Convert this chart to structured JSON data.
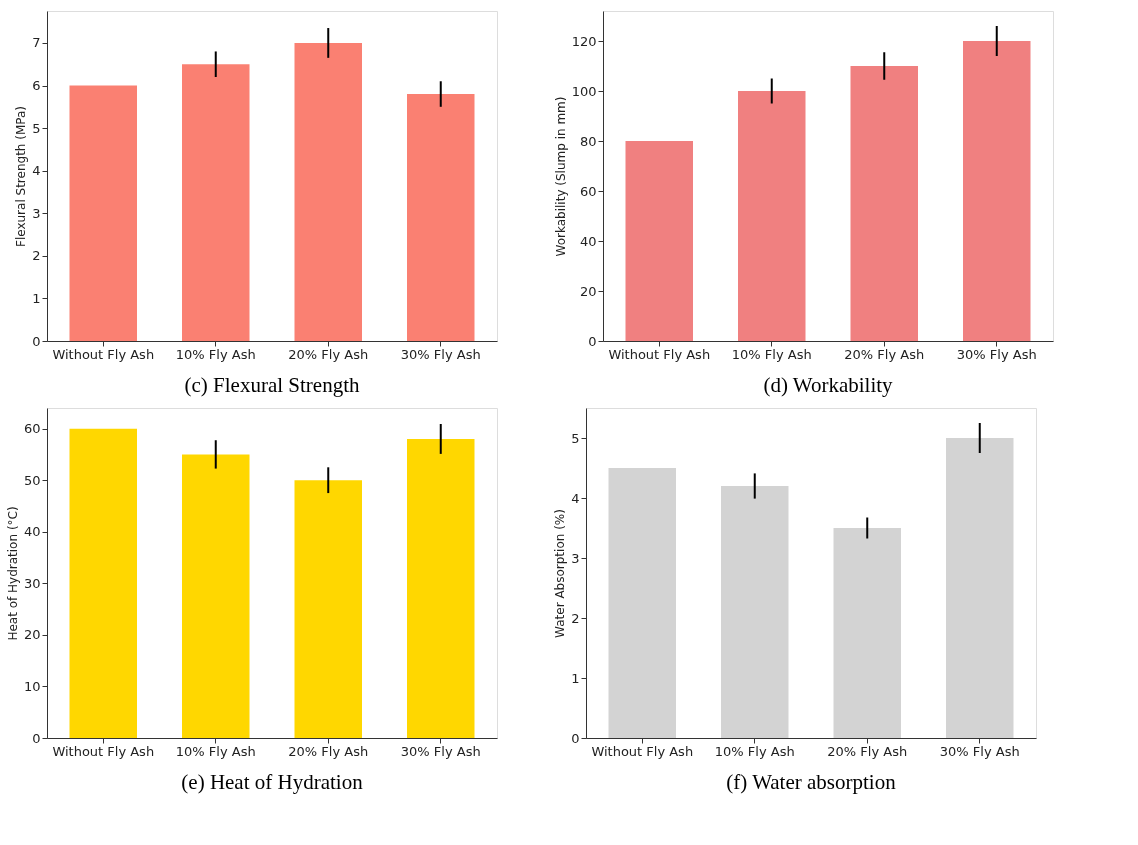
{
  "chart_data": [
    {
      "type": "bar",
      "title": "(c)   Flexural Strength",
      "ylabel": "Flexural Strength (MPa)",
      "categories": [
        "Without Fly Ash",
        "10% Fly Ash",
        "20% Fly Ash",
        "30% Fly Ash"
      ],
      "values": [
        6,
        6.5,
        7,
        5.8
      ],
      "errors": [
        null,
        0.3,
        0.35,
        0.3
      ],
      "color": "#fa8072",
      "ylim": [
        0,
        7.75
      ],
      "yticks": [
        0,
        1,
        2,
        3,
        4,
        5,
        6,
        7
      ],
      "grid": false
    },
    {
      "type": "bar",
      "title": "(d)   Workability",
      "ylabel": "Workability (Slump in mm)",
      "categories": [
        "Without Fly Ash",
        "10% Fly Ash",
        "20% Fly Ash",
        "30% Fly Ash"
      ],
      "values": [
        80,
        100,
        110,
        120
      ],
      "errors": [
        null,
        5,
        5.5,
        6
      ],
      "color": "#f08080",
      "ylim": [
        0,
        132
      ],
      "yticks": [
        0,
        20,
        40,
        60,
        80,
        100,
        120
      ],
      "grid": false
    },
    {
      "type": "bar",
      "title": "(e)   Heat of Hydration",
      "ylabel": "Heat of Hydration (°C)",
      "categories": [
        "Without Fly Ash",
        "10% Fly Ash",
        "20% Fly Ash",
        "30% Fly Ash"
      ],
      "values": [
        60,
        55,
        50,
        58
      ],
      "errors": [
        null,
        2.75,
        2.5,
        2.9
      ],
      "color": "#ffd700",
      "ylim": [
        0,
        64
      ],
      "yticks": [
        0,
        10,
        20,
        30,
        40,
        50,
        60
      ],
      "grid": false
    },
    {
      "type": "bar",
      "title": "(f)   Water absorption",
      "ylabel": "Water Absorption (%)",
      "categories": [
        "Without Fly Ash",
        "10% Fly Ash",
        "20% Fly Ash",
        "30% Fly Ash"
      ],
      "values": [
        4.5,
        4.2,
        3.5,
        5.0
      ],
      "errors": [
        null,
        0.21,
        0.175,
        0.25
      ],
      "color": "#d3d3d3",
      "ylim": [
        0,
        5.5
      ],
      "yticks": [
        0,
        1,
        2,
        3,
        4,
        5
      ],
      "grid": false
    }
  ]
}
